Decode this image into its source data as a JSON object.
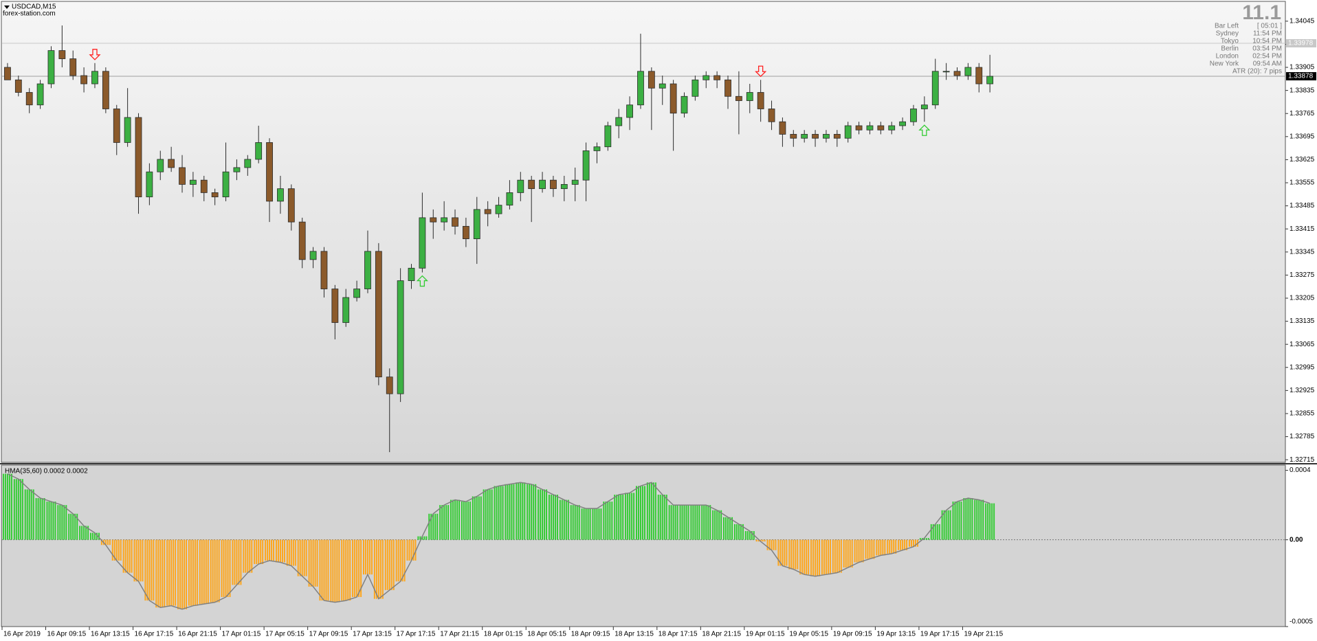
{
  "chart_data": [
    {
      "type": "candlestick",
      "title": "USDCAD,M15",
      "subtitle": "forex-station.com",
      "categories": [
        "16 Apr 2019",
        null,
        null,
        null,
        "16 Apr 09:15",
        null,
        null,
        null,
        "16 Apr 13:15",
        null,
        null,
        null,
        "16 Apr 17:15",
        null,
        null,
        null,
        "16 Apr 21:15",
        null,
        null,
        null,
        "17 Apr 01:15",
        null,
        null,
        null,
        "17 Apr 05:15",
        null,
        null,
        null,
        "17 Apr 09:15",
        null,
        null,
        null,
        "17 Apr 13:15",
        null,
        null,
        null,
        "17 Apr 17:15",
        null,
        null,
        null,
        "17 Apr 21:15",
        null,
        null,
        null,
        "18 Apr 01:15",
        null,
        null,
        null,
        "18 Apr 05:15",
        null,
        null,
        null,
        "18 Apr 09:15",
        null,
        null,
        null,
        "18 Apr 13:15",
        null,
        null,
        null,
        "18 Apr 17:15",
        null,
        null,
        null,
        "18 Apr 21:15",
        null,
        null,
        null,
        "19 Apr 01:15",
        null,
        null,
        null,
        "19 Apr 05:15",
        null,
        null,
        null,
        "19 Apr 09:15",
        null,
        null,
        null,
        "19 Apr 13:15",
        null,
        null,
        null,
        "19 Apr 17:15",
        null,
        null,
        null,
        "19 Apr 21:15",
        null,
        null
      ],
      "open": [
        1.33905,
        1.33867,
        1.33829,
        1.33791,
        1.33855,
        1.33956,
        1.33931,
        1.3388,
        1.33855,
        1.33893,
        1.33779,
        1.33677,
        1.33753,
        1.33512,
        1.33588,
        1.33626,
        1.33601,
        1.3355,
        1.33563,
        1.33525,
        1.33512,
        1.33588,
        1.33601,
        1.33626,
        1.33677,
        1.33499,
        1.33537,
        1.33436,
        1.33322,
        1.33347,
        1.33233,
        1.33131,
        1.33207,
        1.33233,
        1.33347,
        1.32966,
        1.32915,
        1.33258,
        1.33296,
        1.33449,
        1.33436,
        1.33449,
        1.33423,
        1.33385,
        1.33474,
        1.33461,
        1.33487,
        1.33525,
        1.33563,
        1.33537,
        1.33563,
        1.33537,
        1.3355,
        1.33563,
        1.33652,
        1.33664,
        1.33728,
        1.33753,
        1.33791,
        1.33893,
        1.33842,
        1.33855,
        1.33766,
        1.33817,
        1.33867,
        1.3388,
        1.33867,
        1.33817,
        1.33804,
        1.33829,
        1.33779,
        1.3374,
        1.33702,
        1.3369,
        1.33702,
        1.3369,
        1.33702,
        1.3369,
        1.33728,
        1.33715,
        1.33728,
        1.33715,
        1.33728,
        1.3374,
        1.33779,
        1.33791,
        1.33893,
        1.33893,
        1.3388,
        1.33905,
        1.33855
      ],
      "high": [
        1.33918,
        1.3388,
        1.33842,
        1.33867,
        1.33969,
        1.34032,
        1.33956,
        1.33905,
        1.33918,
        1.33905,
        1.33791,
        1.33842,
        1.33766,
        1.33614,
        1.33652,
        1.33664,
        1.33639,
        1.33588,
        1.33576,
        1.33537,
        1.33677,
        1.33626,
        1.33639,
        1.33728,
        1.3369,
        1.33576,
        1.3355,
        1.33449,
        1.3336,
        1.3336,
        1.33245,
        1.33233,
        1.33258,
        1.3341,
        1.33372,
        1.32992,
        1.33296,
        1.33309,
        1.33525,
        1.33474,
        1.33499,
        1.33474,
        1.33449,
        1.33512,
        1.33499,
        1.33512,
        1.33563,
        1.33588,
        1.33576,
        1.33588,
        1.33576,
        1.33576,
        1.33601,
        1.33677,
        1.33677,
        1.3374,
        1.33779,
        1.33817,
        1.34007,
        1.33905,
        1.3388,
        1.33867,
        1.33829,
        1.3388,
        1.33893,
        1.33893,
        1.3388,
        1.33893,
        1.33855,
        1.33867,
        1.33804,
        1.33753,
        1.33715,
        1.33715,
        1.33715,
        1.33715,
        1.33715,
        1.3374,
        1.3374,
        1.3374,
        1.3374,
        1.3374,
        1.33753,
        1.33791,
        1.33817,
        1.33931,
        1.33918,
        1.33905,
        1.33918,
        1.33918,
        1.33943
      ],
      "low": [
        1.33867,
        1.33817,
        1.33766,
        1.33779,
        1.33842,
        1.33905,
        1.33867,
        1.33829,
        1.33842,
        1.33766,
        1.33639,
        1.33664,
        1.33461,
        1.33487,
        1.33563,
        1.33588,
        1.33525,
        1.33512,
        1.33499,
        1.33487,
        1.33499,
        1.33563,
        1.33576,
        1.33614,
        1.33436,
        1.33461,
        1.3341,
        1.33296,
        1.33296,
        1.33207,
        1.3308,
        1.33118,
        1.33195,
        1.3322,
        1.32941,
        1.32738,
        1.3289,
        1.33233,
        1.33283,
        1.33385,
        1.3341,
        1.33398,
        1.3336,
        1.33309,
        1.33423,
        1.33449,
        1.33474,
        1.33499,
        1.33436,
        1.33525,
        1.33512,
        1.33499,
        1.33499,
        1.33499,
        1.33614,
        1.33652,
        1.3369,
        1.33715,
        1.33779,
        1.33715,
        1.33791,
        1.33652,
        1.33753,
        1.33804,
        1.33842,
        1.33842,
        1.33779,
        1.33702,
        1.33766,
        1.3374,
        1.33715,
        1.33664,
        1.33664,
        1.33677,
        1.33664,
        1.33677,
        1.33664,
        1.33677,
        1.33702,
        1.33702,
        1.33702,
        1.33702,
        1.33715,
        1.33728,
        1.3374,
        1.33779,
        1.33867,
        1.33867,
        1.33867,
        1.33829,
        1.33829
      ],
      "close": [
        1.33867,
        1.33829,
        1.33791,
        1.33855,
        1.33956,
        1.33931,
        1.3388,
        1.33855,
        1.33893,
        1.33779,
        1.33677,
        1.33753,
        1.33512,
        1.33588,
        1.33626,
        1.33601,
        1.3355,
        1.33563,
        1.33525,
        1.33512,
        1.33588,
        1.33601,
        1.33626,
        1.33677,
        1.33499,
        1.33537,
        1.33436,
        1.33322,
        1.33347,
        1.33233,
        1.33131,
        1.33207,
        1.33233,
        1.33347,
        1.32966,
        1.32915,
        1.33258,
        1.33296,
        1.33449,
        1.33436,
        1.33449,
        1.33423,
        1.33385,
        1.33474,
        1.33461,
        1.33487,
        1.33525,
        1.33563,
        1.33537,
        1.33563,
        1.33537,
        1.3355,
        1.33563,
        1.33652,
        1.33664,
        1.33728,
        1.33753,
        1.33791,
        1.33893,
        1.33842,
        1.33855,
        1.33766,
        1.33817,
        1.33867,
        1.3388,
        1.33867,
        1.33817,
        1.33804,
        1.33829,
        1.33779,
        1.3374,
        1.33702,
        1.3369,
        1.33702,
        1.3369,
        1.33702,
        1.3369,
        1.33728,
        1.33715,
        1.33728,
        1.33715,
        1.33728,
        1.3374,
        1.33779,
        1.33791,
        1.33893,
        1.33893,
        1.3388,
        1.33905,
        1.33855,
        1.33878
      ],
      "up_color": "#3cb043",
      "down_color": "#8b5a2b",
      "ylim": [
        1.32707,
        1.34103
      ],
      "yticks": [
        1.34045,
        1.33975,
        1.33905,
        1.33835,
        1.33765,
        1.33695,
        1.33625,
        1.33555,
        1.33485,
        1.33415,
        1.33345,
        1.33275,
        1.33205,
        1.33135,
        1.33065,
        1.32995,
        1.32925,
        1.32855,
        1.32785,
        1.32715
      ],
      "price_lines": [
        {
          "value": 1.33978,
          "color": "#c8c8c8"
        },
        {
          "value": 1.33878,
          "color": "#000000"
        }
      ],
      "signals": [
        {
          "index": 8,
          "direction": "down",
          "color": "#ff2020"
        },
        {
          "index": 38,
          "direction": "up",
          "color": "#33cc33"
        },
        {
          "index": 69,
          "direction": "down",
          "color": "#ff2020"
        },
        {
          "index": 84,
          "direction": "up",
          "color": "#33cc33"
        }
      ],
      "info_panel": {
        "spread": 11.1,
        "rows": [
          {
            "label": "Bar Left",
            "value": "[ 05:01 ]"
          },
          {
            "label": "Sydney",
            "value": "11:54 PM"
          },
          {
            "label": "Tokyo",
            "value": "10:54 PM"
          },
          {
            "label": "Berlin",
            "value": "03:54 PM"
          },
          {
            "label": "London",
            "value": "02:54 PM"
          },
          {
            "label": "New York",
            "value": "09:54 AM"
          }
        ],
        "atr": "ATR (20): 7 pips"
      }
    },
    {
      "type": "histogram",
      "title": "HMA(35,60) 0.0002 0.0002",
      "values": [
        0.00038,
        0.00035,
        0.00029,
        0.00024,
        0.00022,
        0.0002,
        0.00015,
        8e-05,
        4e-05,
        -3e-05,
        -0.00012,
        -0.00019,
        -0.00024,
        -0.00035,
        -0.00039,
        -0.00038,
        -0.0004,
        -0.00038,
        -0.00037,
        -0.00036,
        -0.00033,
        -0.00026,
        -0.00019,
        -0.00014,
        -0.00012,
        -0.00013,
        -0.00015,
        -0.00021,
        -0.00027,
        -0.00035,
        -0.00036,
        -0.00035,
        -0.00033,
        -0.0002,
        -0.00034,
        -0.00029,
        -0.00024,
        -0.00012,
        2e-05,
        0.00015,
        0.0002,
        0.00023,
        0.00022,
        0.00025,
        0.00029,
        0.00031,
        0.00032,
        0.00033,
        0.00032,
        0.00029,
        0.00026,
        0.00023,
        0.0002,
        0.00018,
        0.00018,
        0.00022,
        0.00026,
        0.00027,
        0.00031,
        0.00033,
        0.00026,
        0.0002,
        0.0002,
        0.0002,
        0.0002,
        0.00017,
        0.00013,
        9e-05,
        5e-05,
        -1e-05,
        -6e-05,
        -0.00015,
        -0.00017,
        -0.0002,
        -0.00021,
        -0.0002,
        -0.00019,
        -0.00016,
        -0.00013,
        -0.00011,
        -9e-05,
        -8e-05,
        -6e-05,
        -4e-05,
        1e-05,
        9e-05,
        0.00017,
        0.00022,
        0.00024,
        0.00023,
        0.00021
      ],
      "positive_color": "#33cc33",
      "negative_color": "#ffa61a",
      "line_color": "#808080",
      "ylim": [
        -0.0005,
        0.00043
      ],
      "yticks": [
        0.0004,
        {
          "value": 0,
          "label": "0.00"
        },
        -0.0005
      ]
    }
  ]
}
